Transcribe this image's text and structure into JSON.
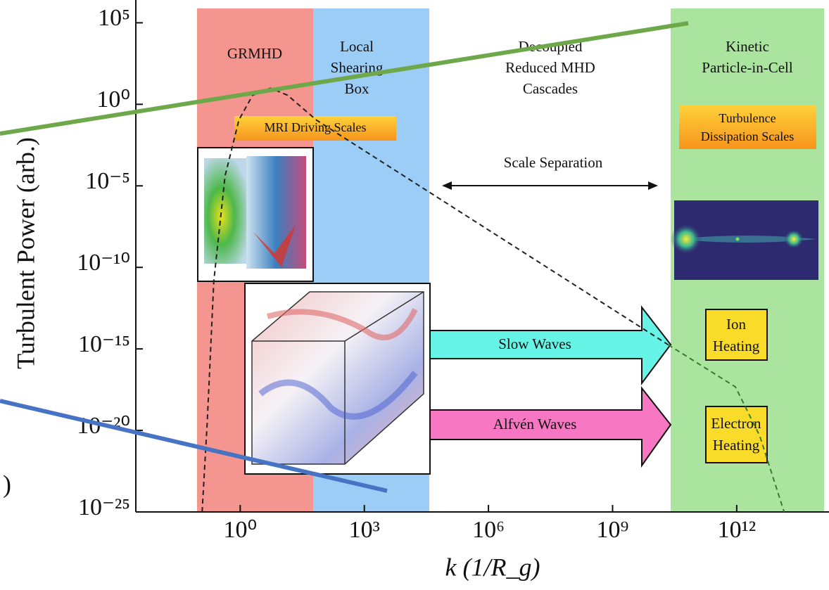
{
  "chart_data": {
    "type": "line",
    "xlabel": "k (1/R_g)",
    "ylabel": "Turbulent Power (arb.)",
    "xscale": "log",
    "yscale": "log",
    "xlim": [
      0.003,
      170000000000000.0
    ],
    "ylim": [
      1e-25,
      2500000.0
    ],
    "xticks": [
      {
        "value": 1,
        "label": "10⁰"
      },
      {
        "value": 1000,
        "label": "10³"
      },
      {
        "value": 1000000.0,
        "label": "10⁶"
      },
      {
        "value": 1000000000.0,
        "label": "10⁹"
      },
      {
        "value": 1000000000000.0,
        "label": "10¹²"
      }
    ],
    "yticks": [
      {
        "value": 100000.0,
        "label": "10⁵"
      },
      {
        "value": 1,
        "label": "10⁰"
      },
      {
        "value": 1e-05,
        "label": "10⁻⁵"
      },
      {
        "value": 1e-10,
        "label": "10⁻¹⁰"
      },
      {
        "value": 1e-15,
        "label": "10⁻¹⁵"
      },
      {
        "value": 1e-20,
        "label": "10⁻²⁰"
      },
      {
        "value": 1e-25,
        "label": "10⁻²⁵"
      }
    ],
    "series": [
      {
        "color": "#222222",
        "dashed": true,
        "x": [
          0.12,
          0.16,
          0.23,
          0.43,
          0.93,
          2.0,
          5.4,
          14,
          69,
          22000000000.0
        ],
        "values": [
          1e-25,
          3.3e-20,
          1.4e-11,
          4e-05,
          0.11,
          3.6,
          9.8,
          3.6,
          0.11,
          1.8e-15
        ]
      },
      {
        "color": "#3c7a2c",
        "dashed": true,
        "x": [
          22000000000.0,
          930000000000.0,
          3600000000000.0,
          14000000000000.0
        ],
        "values": [
          1.8e-15,
          4.7e-18,
          4.6e-21,
          1e-25
        ]
      }
    ],
    "regions": [
      {
        "lines": [
          "GRMHD"
        ]
      },
      {
        "lines": [
          "Local",
          "Shearing",
          "Box"
        ]
      },
      {
        "lines": [
          "Decoupled",
          "Reduced MHD",
          "Cascades"
        ]
      },
      {
        "lines": [
          "Kinetic",
          "Particle-in-Cell"
        ]
      }
    ],
    "annotations": {
      "mri": "MRI Driving Scales",
      "dissipation": [
        "Turbulence",
        "Dissipation Scales"
      ],
      "separation": "Scale Separation",
      "slow": "Slow Waves",
      "alfven": "Alfvén Waves",
      "ion": [
        "Ion",
        "Heating"
      ],
      "electron": [
        "Electron",
        "Heating"
      ],
      "fragment": ")"
    }
  }
}
